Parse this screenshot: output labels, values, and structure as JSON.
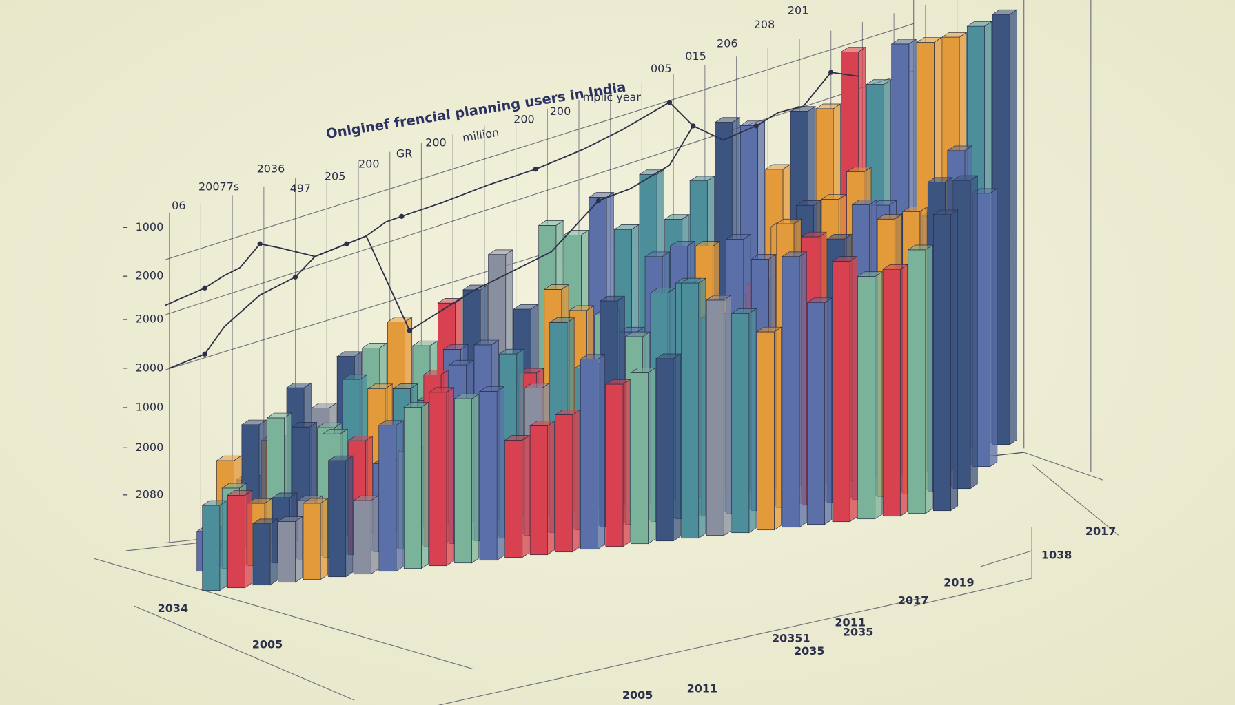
{
  "title": "Onlginef frencial planning users in India",
  "unit_label": "million",
  "y_axis_labels": [
    "1000",
    "2000",
    "2000",
    "2000",
    "1000",
    "2000",
    "2080"
  ],
  "top_labels": [
    "06",
    "20077s",
    "2036",
    "497",
    "205",
    "200",
    "GR",
    "200",
    "200",
    "200",
    "mplic year",
    "005",
    "015",
    "206",
    "208",
    "201"
  ],
  "bottom_labels": [
    "2017",
    "1038",
    "2019",
    "2017",
    "2011",
    "20351",
    "2035",
    "2035",
    "2011",
    "2005",
    "2005",
    "2034"
  ]
}
